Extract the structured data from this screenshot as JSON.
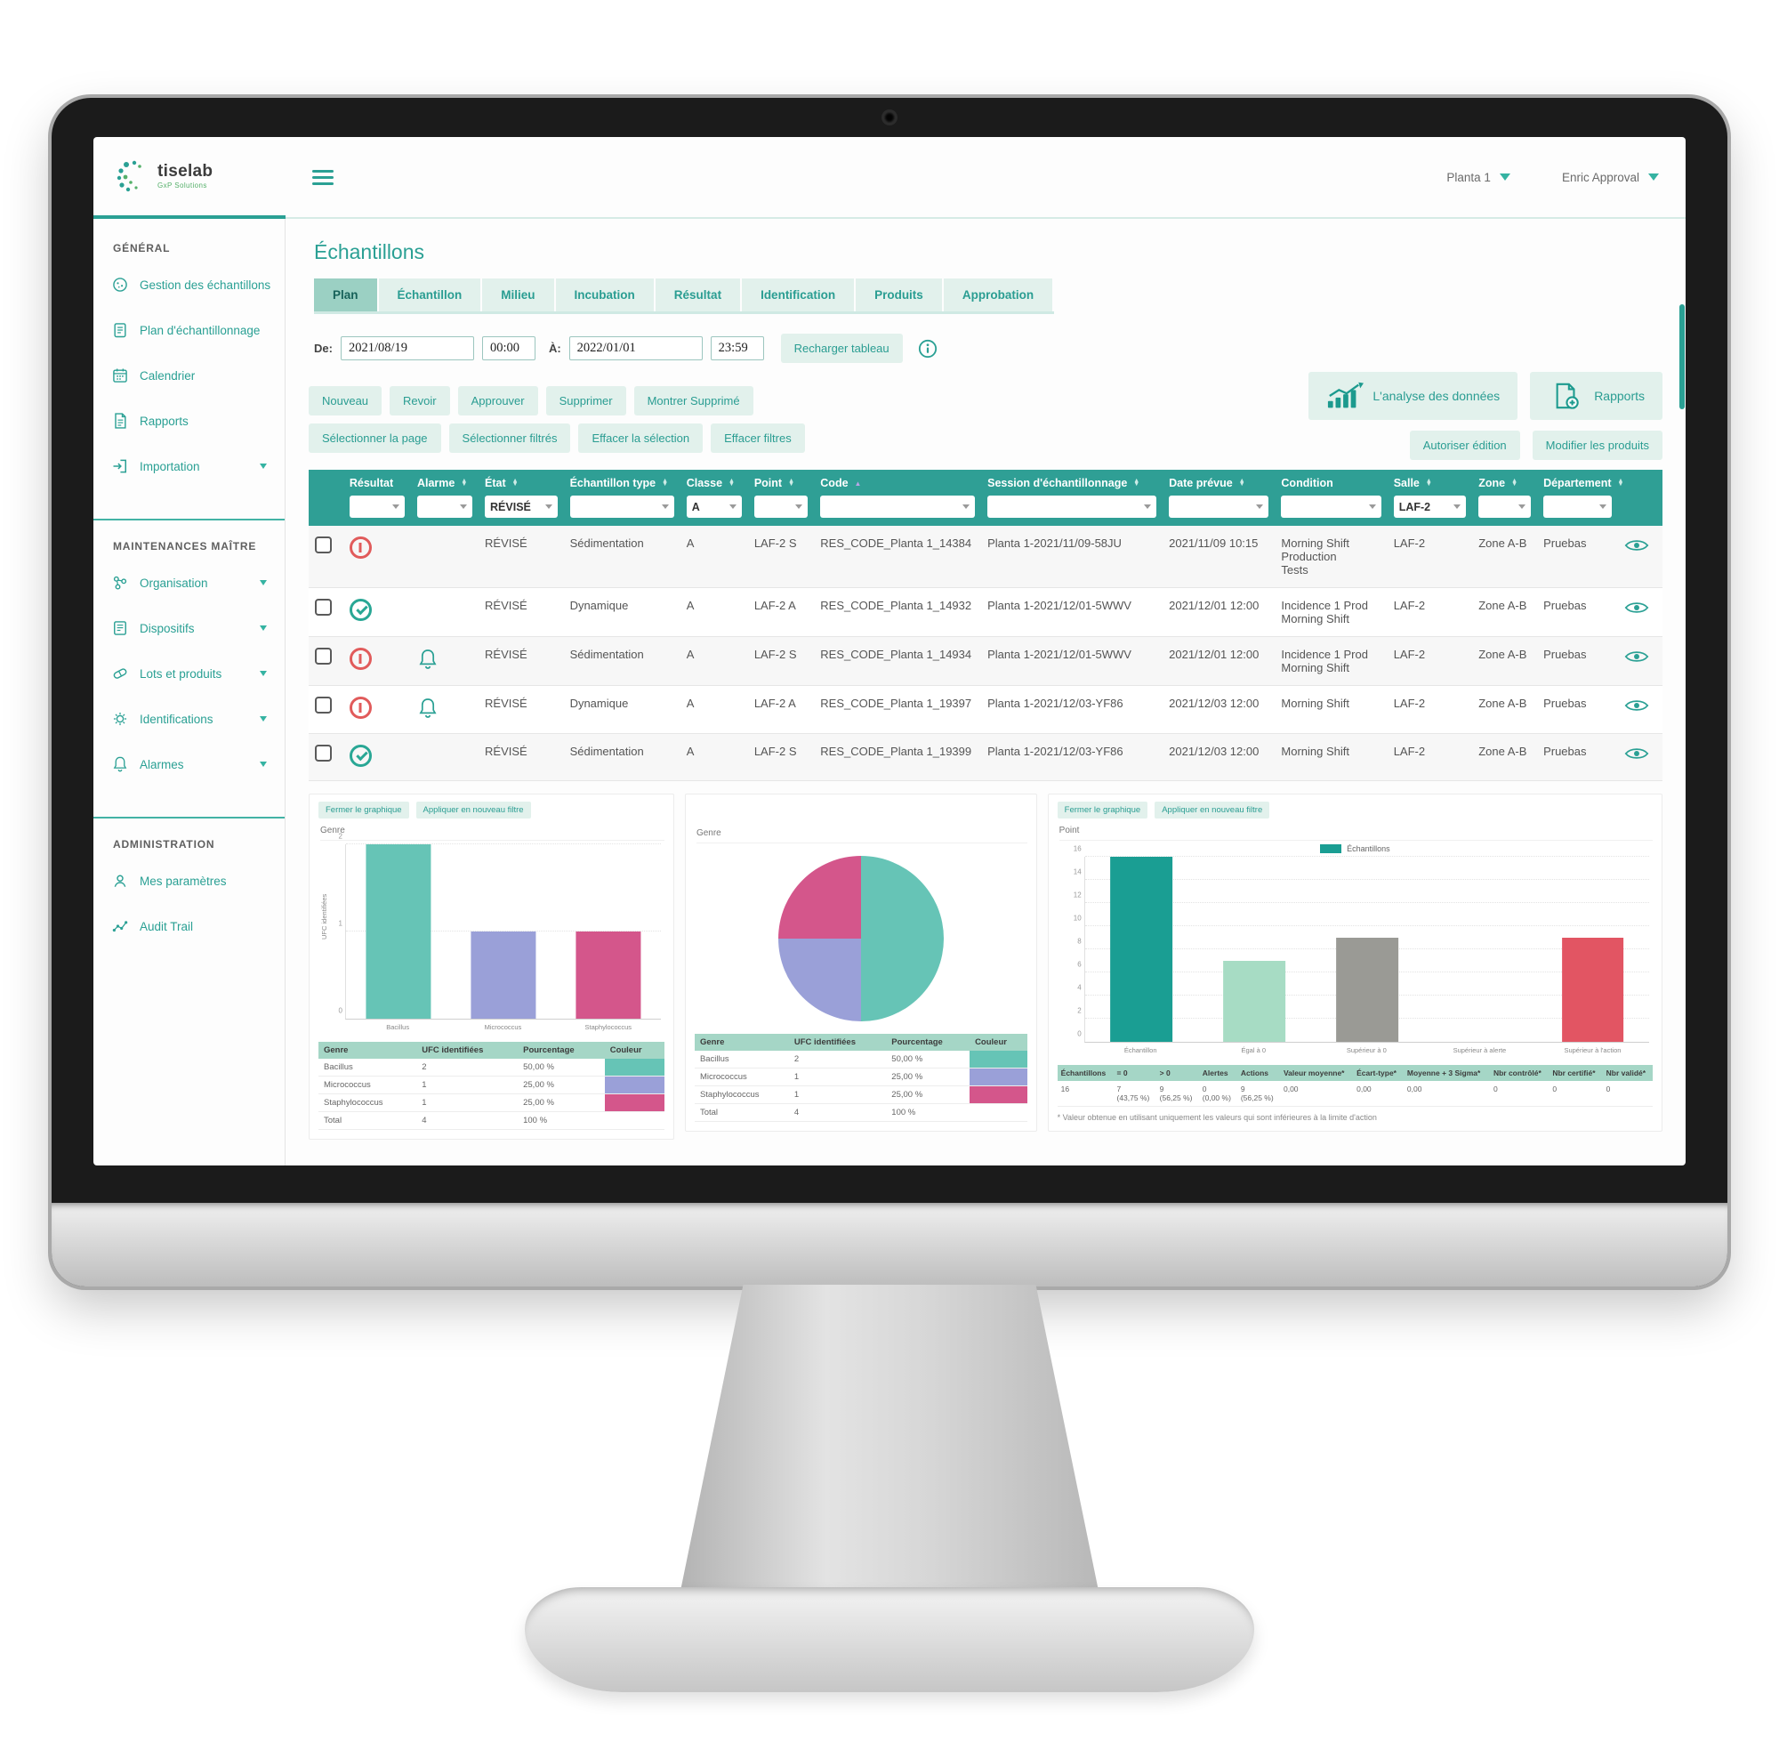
{
  "theme": {
    "accent": "#2aa094",
    "table_header": "#2f9f95",
    "button_bg": "#e2f1ec",
    "active_tab_bg": "#9bd0c3"
  },
  "header": {
    "app_name": "tiselab",
    "app_tagline": "GxP Solutions",
    "plant_selector": "Planta 1",
    "user_menu": "Enric Approval"
  },
  "sidebar": {
    "sections": [
      {
        "title": "GÉNÉRAL",
        "items": [
          {
            "label": "Gestion des échantillons",
            "icon": "samples-icon",
            "expandable": false
          },
          {
            "label": "Plan d'échantillonnage",
            "icon": "sampling-plan-icon",
            "expandable": false
          },
          {
            "label": "Calendrier",
            "icon": "calendar-icon",
            "expandable": false
          },
          {
            "label": "Rapports",
            "icon": "reports-icon",
            "expandable": false
          },
          {
            "label": "Importation",
            "icon": "import-icon",
            "expandable": true
          }
        ]
      },
      {
        "title": "MAINTENANCES MAÎTRE",
        "items": [
          {
            "label": "Organisation",
            "icon": "organisation-icon",
            "expandable": true
          },
          {
            "label": "Dispositifs",
            "icon": "devices-icon",
            "expandable": true
          },
          {
            "label": "Lots et produits",
            "icon": "lots-products-icon",
            "expandable": true
          },
          {
            "label": "Identifications",
            "icon": "identifications-icon",
            "expandable": true
          },
          {
            "label": "Alarmes",
            "icon": "alarms-icon",
            "expandable": true
          }
        ]
      },
      {
        "title": "ADMINISTRATION",
        "items": [
          {
            "label": "Mes paramètres",
            "icon": "my-settings-icon",
            "expandable": false
          },
          {
            "label": "Audit Trail",
            "icon": "audit-trail-icon",
            "expandable": false
          }
        ]
      }
    ]
  },
  "page": {
    "title": "Échantillons"
  },
  "tabs": {
    "active": "Plan",
    "items": [
      "Plan",
      "Échantillon",
      "Milieu",
      "Incubation",
      "Résultat",
      "Identification",
      "Produits",
      "Approbation"
    ]
  },
  "filters": {
    "from_label": "De:",
    "from_date": "2021/08/19",
    "from_time": "00:00",
    "to_label": "À:",
    "to_date": "2022/01/01",
    "to_time": "23:59",
    "reload_button": "Recharger tableau"
  },
  "actions": {
    "analysis_button": "L'analyse des données",
    "reports_button": "Rapports",
    "authorize_button": "Autoriser édition",
    "modify_products_button": "Modifier les produits",
    "primary": [
      "Nouveau",
      "Revoir",
      "Approuver",
      "Supprimer",
      "Montrer Supprimé"
    ],
    "selection": [
      "Sélectionner la page",
      "Sélectionner filtrés",
      "Effacer la sélection",
      "Effacer filtres"
    ]
  },
  "table": {
    "columns": [
      {
        "label": "Résultat",
        "sortable": false,
        "filter": ""
      },
      {
        "label": "Alarme",
        "sortable": true,
        "filter": ""
      },
      {
        "label": "État",
        "sortable": true,
        "filter": "RÉVISÉ"
      },
      {
        "label": "Échantillon type",
        "sortable": true,
        "filter": ""
      },
      {
        "label": "Classe",
        "sortable": true,
        "filter": "A"
      },
      {
        "label": "Point",
        "sortable": true,
        "filter": ""
      },
      {
        "label": "Code",
        "sortable": false,
        "sort_active": true,
        "filter": ""
      },
      {
        "label": "Session d'échantillonnage",
        "sortable": true,
        "filter": ""
      },
      {
        "label": "Date prévue",
        "sortable": true,
        "filter": ""
      },
      {
        "label": "Condition",
        "sortable": false,
        "filter": ""
      },
      {
        "label": "Salle",
        "sortable": true,
        "filter": "LAF-2"
      },
      {
        "label": "Zone",
        "sortable": true,
        "filter": ""
      },
      {
        "label": "Département",
        "sortable": true,
        "filter": ""
      }
    ],
    "rows": [
      {
        "result": "alert",
        "alarm": false,
        "etat": "RÉVISÉ",
        "type": "Sédimentation",
        "classe": "A",
        "point": "LAF-2 S",
        "code": "RES_CODE_Planta 1_14384",
        "session": "Planta 1-2021/11/09-58JU",
        "date": "2021/11/09 10:15",
        "condition": "Morning Shift\nProduction\nTests",
        "salle": "LAF-2",
        "zone": "Zone A-B",
        "departement": "Pruebas"
      },
      {
        "result": "ok",
        "alarm": false,
        "etat": "RÉVISÉ",
        "type": "Dynamique",
        "classe": "A",
        "point": "LAF-2 A",
        "code": "RES_CODE_Planta 1_14932",
        "session": "Planta 1-2021/12/01-5WWV",
        "date": "2021/12/01 12:00",
        "condition": "Incidence 1 Prod\nMorning Shift",
        "salle": "LAF-2",
        "zone": "Zone A-B",
        "departement": "Pruebas"
      },
      {
        "result": "alert",
        "alarm": true,
        "etat": "RÉVISÉ",
        "type": "Sédimentation",
        "classe": "A",
        "point": "LAF-2 S",
        "code": "RES_CODE_Planta 1_14934",
        "session": "Planta 1-2021/12/01-5WWV",
        "date": "2021/12/01 12:00",
        "condition": "Incidence 1 Prod\nMorning Shift",
        "salle": "LAF-2",
        "zone": "Zone A-B",
        "departement": "Pruebas"
      },
      {
        "result": "alert",
        "alarm": true,
        "etat": "RÉVISÉ",
        "type": "Dynamique",
        "classe": "A",
        "point": "LAF-2 A",
        "code": "RES_CODE_Planta 1_19397",
        "session": "Planta 1-2021/12/03-YF86",
        "date": "2021/12/03 12:00",
        "condition": "Morning Shift",
        "salle": "LAF-2",
        "zone": "Zone A-B",
        "departement": "Pruebas"
      },
      {
        "result": "ok",
        "alarm": false,
        "etat": "RÉVISÉ",
        "type": "Sédimentation",
        "classe": "A",
        "point": "LAF-2 S",
        "code": "RES_CODE_Planta 1_19399",
        "session": "Planta 1-2021/12/03-YF86",
        "date": "2021/12/03 12:00",
        "condition": "Morning Shift",
        "salle": "LAF-2",
        "zone": "Zone A-B",
        "departement": "Pruebas"
      }
    ]
  },
  "chart_ui": {
    "close_button": "Fermer le graphique",
    "apply_button": "Appliquer en nouveau filtre"
  },
  "chart_data": [
    {
      "type": "bar",
      "title": "Genre",
      "xlabel": "",
      "ylabel": "UFC identifiées",
      "ylim": [
        0,
        2
      ],
      "yticks": [
        0,
        1,
        2
      ],
      "grid": true,
      "categories": [
        "Bacillus",
        "Micrococcus",
        "Staphylococcus"
      ],
      "values": [
        2,
        1,
        1
      ],
      "colors": [
        "#66c4b6",
        "#9aa0d8",
        "#d4568b"
      ],
      "table": {
        "columns": [
          "Genre",
          "UFC identifiées",
          "Pourcentage",
          "Couleur"
        ],
        "rows": [
          [
            "Bacillus",
            "2",
            "50,00 %",
            "#66c4b6"
          ],
          [
            "Micrococcus",
            "1",
            "25,00 %",
            "#9aa0d8"
          ],
          [
            "Staphylococcus",
            "1",
            "25,00 %",
            "#d4568b"
          ],
          [
            "Total",
            "4",
            "100 %",
            ""
          ]
        ]
      }
    },
    {
      "type": "pie",
      "title": "Genre",
      "slices": [
        {
          "label": "Bacillus",
          "value": 50,
          "color": "#66c4b6"
        },
        {
          "label": "Micrococcus",
          "value": 25,
          "color": "#9aa0d8"
        },
        {
          "label": "Staphylococcus",
          "value": 25,
          "color": "#d4568b"
        }
      ],
      "table": {
        "columns": [
          "Genre",
          "UFC identifiées",
          "Pourcentage",
          "Couleur"
        ],
        "rows": [
          [
            "Bacillus",
            "2",
            "50,00 %",
            "#66c4b6"
          ],
          [
            "Micrococcus",
            "1",
            "25,00 %",
            "#9aa0d8"
          ],
          [
            "Staphylococcus",
            "1",
            "25,00 %",
            "#d4568b"
          ],
          [
            "Total",
            "4",
            "100 %",
            ""
          ]
        ]
      }
    },
    {
      "type": "bar",
      "title": "Point",
      "legend": "Échantillons",
      "xlabel": "",
      "ylabel": "",
      "ylim": [
        0,
        16
      ],
      "yticks": [
        0,
        2,
        4,
        6,
        8,
        10,
        12,
        14,
        16
      ],
      "grid": true,
      "categories": [
        "Échantillon",
        "Égal à 0",
        "Supérieur à 0",
        "Supérieur à alerte",
        "Supérieur à l'action"
      ],
      "values": [
        16,
        7,
        9,
        0,
        9
      ],
      "colors": [
        "#1a9e93",
        "#a7dcc4",
        "#9a9a95",
        "#e25563",
        "#e25563"
      ],
      "table": {
        "columns": [
          "Échantillons",
          "= 0",
          "> 0",
          "Alertes",
          "Actions",
          "Valeur moyenne*",
          "Écart-type*",
          "Moyenne + 3 Sigma*",
          "Nbr contrôlé*",
          "Nbr certifié*",
          "Nbr validé*"
        ],
        "rows": [
          [
            "16",
            "7\n(43,75 %)",
            "9\n(56,25 %)",
            "0\n(0,00 %)",
            "9\n(56,25 %)",
            "0,00",
            "0,00",
            "0,00",
            "0",
            "0",
            "0"
          ]
        ]
      },
      "footnote": "* Valeur obtenue en utilisant uniquement les valeurs qui sont inférieures à la limite d'action"
    }
  ]
}
